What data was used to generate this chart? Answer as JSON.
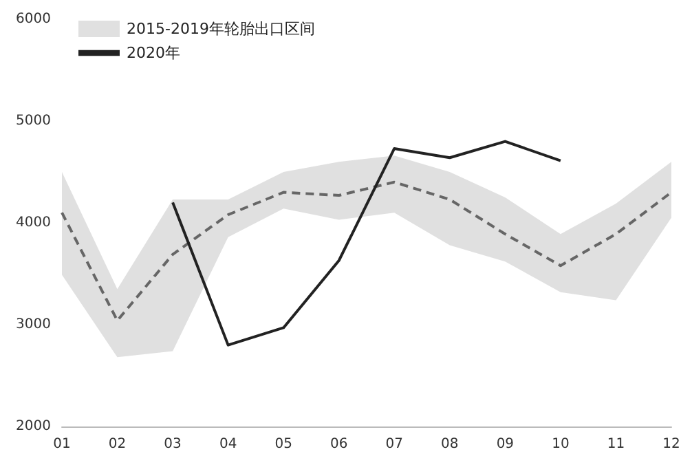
{
  "chart_data": {
    "type": "line",
    "categories": [
      "01",
      "02",
      "03",
      "04",
      "05",
      "06",
      "07",
      "08",
      "09",
      "10",
      "11",
      "12"
    ],
    "series": [
      {
        "name": "2015-2019年轮胎出口区间",
        "color": "#666666",
        "line_style": "dashed",
        "values": [
          4100,
          3040,
          3690,
          4080,
          4300,
          4270,
          4400,
          4230,
          3890,
          3580,
          3890,
          4300
        ],
        "lower": [
          3490,
          2680,
          2740,
          3860,
          4140,
          4030,
          4100,
          3780,
          3620,
          3320,
          3240,
          4050
        ],
        "upper": [
          4500,
          3350,
          4230,
          4230,
          4500,
          4600,
          4660,
          4500,
          4250,
          3890,
          4190,
          4600
        ]
      },
      {
        "name": "2020年",
        "color": "#222222",
        "line_style": "solid",
        "values": [
          null,
          null,
          4200,
          2800,
          2970,
          3630,
          4730,
          4640,
          4800,
          4610,
          null,
          null
        ]
      }
    ],
    "ylim": [
      2000,
      6000
    ],
    "yticks": [
      2000,
      3000,
      4000,
      5000,
      6000
    ],
    "grid": false,
    "legend": "top left",
    "marker": "none"
  }
}
